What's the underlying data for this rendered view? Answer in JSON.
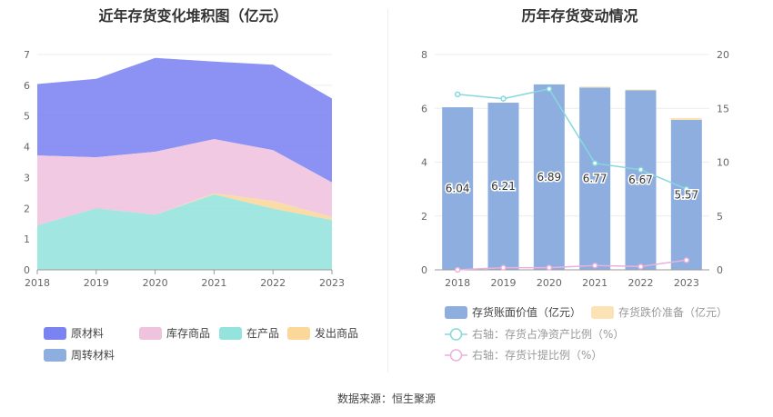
{
  "source_label": "数据来源：恒生聚源",
  "chart_data": [
    {
      "type": "area",
      "stacked": true,
      "title": "近年存货变化堆积图（亿元）",
      "x": [
        "2018",
        "2019",
        "2020",
        "2021",
        "2022",
        "2023"
      ],
      "ylim": [
        0,
        7
      ],
      "yticks": [
        0,
        1,
        2,
        3,
        4,
        5,
        6,
        7
      ],
      "series": [
        {
          "name": "原材料",
          "color": "#7b83f2",
          "values": [
            2.32,
            2.55,
            3.05,
            2.52,
            2.78,
            2.73
          ]
        },
        {
          "name": "库存商品",
          "color": "#efc2de",
          "values": [
            2.28,
            1.66,
            2.05,
            1.76,
            1.65,
            1.12
          ]
        },
        {
          "name": "在产品",
          "color": "#95e3dd",
          "values": [
            1.44,
            2.0,
            1.79,
            2.45,
            1.99,
            1.62
          ]
        },
        {
          "name": "发出商品",
          "color": "#fcd79a",
          "values": [
            0.0,
            0.0,
            0.0,
            0.04,
            0.25,
            0.1
          ]
        },
        {
          "name": "周转材料",
          "color": "#8eaee0",
          "values": [
            0.0,
            0.0,
            0.0,
            0.0,
            0.0,
            0.0
          ]
        }
      ]
    },
    {
      "type": "bar",
      "title": "历年存货变动情况",
      "categories": [
        "2018",
        "2019",
        "2020",
        "2021",
        "2022",
        "2023"
      ],
      "ylim": [
        0,
        8
      ],
      "yticks": [
        0,
        2,
        4,
        6,
        8
      ],
      "y2lim": [
        0,
        20
      ],
      "y2ticks": [
        0,
        5,
        10,
        15,
        20
      ],
      "bars": [
        {
          "name": "存货账面价值（亿元）",
          "color": "#8eaee0",
          "values": [
            6.04,
            6.21,
            6.89,
            6.77,
            6.67,
            5.57
          ],
          "labels": [
            "6.04",
            "6.21",
            "6.89",
            "6.77",
            "6.67",
            "5.57"
          ]
        },
        {
          "name": "存货跌价准备（亿元）",
          "color": "#fbe3b5",
          "values": [
            0.0,
            0.0,
            0.0,
            0.04,
            0.03,
            0.07
          ]
        }
      ],
      "lines": [
        {
          "name": "右轴：存货占净资产比例（%）",
          "color": "#86d7dc",
          "values": [
            16.3,
            15.9,
            16.8,
            9.9,
            9.3,
            7.5
          ]
        },
        {
          "name": "右轴：存货计提比例（%）",
          "color": "#e9b1dc",
          "values": [
            0.0,
            0.2,
            0.2,
            0.4,
            0.3,
            0.9
          ]
        }
      ]
    }
  ]
}
